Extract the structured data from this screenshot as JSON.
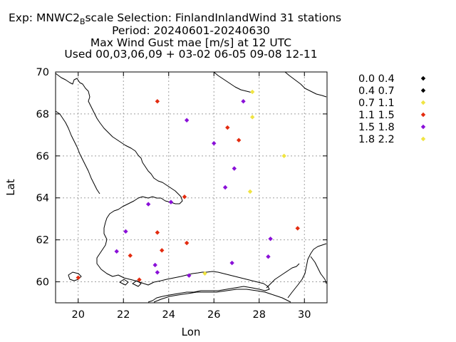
{
  "chart_data": {
    "type": "scatter",
    "title": {
      "line1": {
        "prefix": "Exp: MNWC2",
        "subscript": "B",
        "suffix": "scale   Selection: FinlandInlandWind     31 stations"
      },
      "line2": "Period: 20240601-20240630",
      "line3": "Max Wind Gust mae [m/s] at  12 UTC",
      "line4": "Used 00,03,06,09 + 03-02 06-05 09-08 12-11"
    },
    "xlabel": "Lon",
    "ylabel": "Lat",
    "xlim": [
      19,
      31
    ],
    "ylim": [
      59,
      70
    ],
    "xticks": [
      20,
      22,
      24,
      26,
      28,
      30
    ],
    "yticks": [
      60,
      62,
      64,
      66,
      68,
      70
    ],
    "grid": true,
    "legend_position": "right",
    "legend": [
      {
        "label": "0.0 0.4",
        "color": "#000000"
      },
      {
        "label": "0.4 0.7",
        "color": "#000000"
      },
      {
        "label": "0.7 1.1",
        "color": "#f0e442"
      },
      {
        "label": "1.1 1.5",
        "color": "#e32b0f"
      },
      {
        "label": "1.5 1.8",
        "color": "#8a10d8"
      },
      {
        "label": "1.8 2.2",
        "color": "#f0e442"
      }
    ],
    "series": [
      {
        "name": "1.1 1.5",
        "color": "#e32b0f",
        "points": [
          [
            23.5,
            68.6
          ],
          [
            26.6,
            67.35
          ],
          [
            27.1,
            66.75
          ],
          [
            24.7,
            64.05
          ],
          [
            23.5,
            62.35
          ],
          [
            29.7,
            62.55
          ],
          [
            24.8,
            61.85
          ],
          [
            23.7,
            61.5
          ],
          [
            22.3,
            61.25
          ],
          [
            20.0,
            60.2
          ],
          [
            22.7,
            60.1
          ]
        ]
      },
      {
        "name": "1.5 1.8",
        "color": "#8a10d8",
        "points": [
          [
            24.8,
            67.7
          ],
          [
            27.3,
            68.6
          ],
          [
            26.0,
            66.6
          ],
          [
            26.9,
            65.4
          ],
          [
            26.5,
            64.5
          ],
          [
            24.1,
            63.8
          ],
          [
            23.1,
            63.7
          ],
          [
            22.1,
            62.4
          ],
          [
            28.5,
            62.05
          ],
          [
            21.7,
            61.45
          ],
          [
            28.4,
            61.2
          ],
          [
            23.4,
            60.8
          ],
          [
            26.8,
            60.9
          ],
          [
            23.5,
            60.45
          ],
          [
            24.9,
            60.3
          ]
        ]
      },
      {
        "name": "1.8 2.2",
        "color": "#f0e442",
        "points": [
          [
            27.7,
            69.05
          ],
          [
            27.7,
            67.85
          ],
          [
            29.1,
            66.0
          ],
          [
            27.6,
            64.3
          ],
          [
            25.6,
            60.4
          ]
        ]
      }
    ]
  }
}
